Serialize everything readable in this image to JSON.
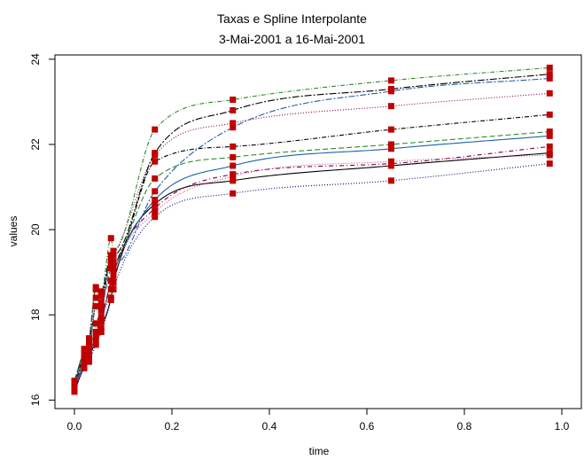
{
  "chart_data": {
    "type": "line",
    "title": "Taxas e Spline Interpolante",
    "subtitle": "3-Mai-2001 a 16-Mai-2001",
    "xlabel": "time",
    "ylabel": "values",
    "xlim": [
      -0.04,
      1.04
    ],
    "ylim": [
      15.8,
      24.1
    ],
    "xticks": [
      0.0,
      0.2,
      0.4,
      0.6,
      0.8,
      1.0
    ],
    "xtick_labels": [
      "0.0",
      "0.2",
      "0.4",
      "0.6",
      "0.8",
      "1.0"
    ],
    "yticks": [
      16,
      18,
      20,
      22,
      24
    ],
    "ytick_labels": [
      "16",
      "18",
      "20",
      "22",
      "24"
    ],
    "marker_color": "#c00000",
    "x": [
      0.0,
      0.02,
      0.03,
      0.044,
      0.055,
      0.075,
      0.08,
      0.165,
      0.325,
      0.65,
      0.975
    ],
    "series": [
      {
        "color": "#000000",
        "dash": "",
        "values": [
          16.2,
          16.8,
          17.0,
          17.4,
          17.7,
          18.4,
          18.75,
          20.6,
          21.15,
          21.5,
          21.8
        ]
      },
      {
        "color": "#1f5fa8",
        "dash": "",
        "values": [
          16.25,
          16.9,
          17.05,
          17.55,
          17.85,
          18.8,
          19.0,
          20.7,
          21.5,
          21.9,
          22.2
        ]
      },
      {
        "color": "#000080",
        "dash": "1,2",
        "values": [
          16.2,
          16.75,
          16.9,
          17.3,
          17.6,
          18.35,
          18.6,
          20.3,
          20.85,
          21.15,
          21.55
        ]
      },
      {
        "color": "#7a0040",
        "dash": "5,3,1,3",
        "values": [
          16.3,
          16.95,
          17.1,
          17.6,
          17.95,
          18.8,
          19.05,
          20.5,
          21.3,
          21.55,
          21.95
        ]
      },
      {
        "color": "#c04090",
        "dash": "1,2",
        "values": [
          16.2,
          16.85,
          17.0,
          17.5,
          17.85,
          18.6,
          18.9,
          20.4,
          21.25,
          21.6,
          21.75
        ]
      },
      {
        "color": "#2a8a2a",
        "dash": "6,3",
        "values": [
          16.3,
          17.0,
          17.15,
          17.8,
          18.1,
          19.1,
          19.15,
          21.2,
          21.7,
          22.0,
          22.3
        ]
      },
      {
        "color": "#000000",
        "dash": "5,2,1,2",
        "values": [
          16.35,
          17.05,
          17.3,
          18.2,
          18.3,
          19.3,
          19.25,
          21.6,
          21.95,
          22.35,
          22.7
        ]
      },
      {
        "color": "#800040",
        "dash": "1,2",
        "values": [
          16.4,
          17.05,
          17.35,
          18.4,
          18.45,
          19.35,
          19.4,
          21.75,
          22.5,
          22.9,
          23.2
        ]
      },
      {
        "color": "#1f5fa8",
        "dash": "7,2,2,2",
        "values": [
          16.35,
          17.1,
          17.2,
          18.2,
          18.2,
          19.25,
          19.15,
          20.9,
          22.4,
          23.25,
          23.55
        ]
      },
      {
        "color": "#000000",
        "dash": "8,2,2,2",
        "values": [
          16.45,
          17.15,
          17.4,
          18.6,
          18.5,
          19.4,
          19.4,
          21.8,
          22.8,
          23.3,
          23.65
        ]
      },
      {
        "color": "#2a8a2a",
        "dash": "5,2,1,2",
        "values": [
          16.45,
          17.2,
          17.45,
          18.65,
          18.55,
          19.8,
          19.5,
          22.35,
          23.05,
          23.5,
          23.8
        ]
      }
    ]
  }
}
